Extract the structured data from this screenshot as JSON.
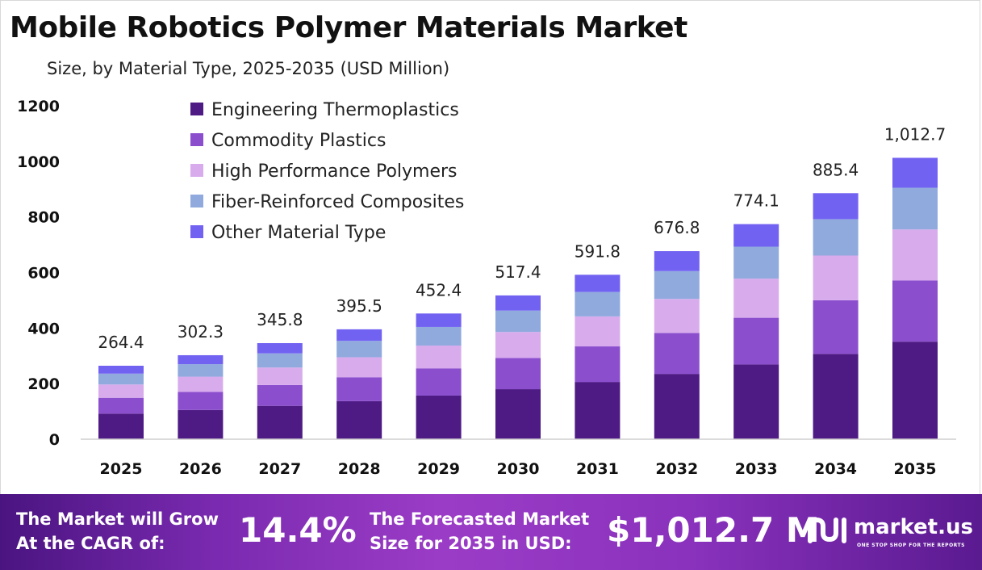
{
  "title": "Mobile Robotics Polymer Materials Market",
  "subtitle": "Size, by Material Type, 2025-2035 (USD Million)",
  "colors": {
    "engineering_thermoplastics": "#4e1a84",
    "commodity_plastics": "#8b4fce",
    "high_performance_polymers": "#d8acec",
    "fiber_reinforced_composites": "#90aade",
    "other_material_type": "#7262f2"
  },
  "chart_data": {
    "type": "bar",
    "stacked": true,
    "categories": [
      "2025",
      "2026",
      "2027",
      "2028",
      "2029",
      "2030",
      "2031",
      "2032",
      "2033",
      "2034",
      "2035"
    ],
    "totals": [
      264.4,
      302.3,
      345.8,
      395.5,
      452.4,
      517.4,
      591.8,
      676.8,
      774.1,
      885.4,
      1012.7
    ],
    "total_labels": [
      "264.4",
      "302.3",
      "345.8",
      "395.5",
      "452.4",
      "517.4",
      "591.8",
      "676.8",
      "774.1",
      "885.4",
      "1,012.7"
    ],
    "series": [
      {
        "name": "Engineering Thermoplastics",
        "color": "#4e1a84",
        "values": [
          92,
          105,
          120,
          137,
          157,
          180,
          206,
          235,
          269,
          307,
          351
        ]
      },
      {
        "name": "Commodity Plastics",
        "color": "#8b4fce",
        "values": [
          57,
          65,
          75,
          86,
          98,
          112,
          128,
          147,
          168,
          193,
          220
        ]
      },
      {
        "name": "High Performance Polymers",
        "color": "#d8acec",
        "values": [
          48,
          55,
          63,
          72,
          82,
          94,
          108,
          123,
          141,
          161,
          184
        ]
      },
      {
        "name": "Fiber-Reinforced Composites",
        "color": "#90aade",
        "values": [
          39,
          45,
          51,
          59,
          67,
          77,
          88,
          100,
          115,
          131,
          150
        ]
      },
      {
        "name": "Other Material Type",
        "color": "#7262f2",
        "values": [
          28.4,
          32.3,
          36.8,
          41.5,
          48.4,
          54.4,
          61.8,
          71.8,
          81.1,
          93.4,
          107.7
        ]
      }
    ],
    "ylim": [
      0,
      1200
    ],
    "yticks": [
      0,
      200,
      400,
      600,
      800,
      1000,
      1200
    ],
    "legend_position": "top-left",
    "grid": false
  },
  "footer": {
    "cagr_line1": "The Market will Grow",
    "cagr_line2": "At the CAGR of:",
    "cagr_value": "14.4%",
    "forecast_line1": "The Forecasted Market",
    "forecast_line2": "Size for 2035 in USD:",
    "forecast_value": "$1,012.7 M",
    "logo_name": "market.us",
    "logo_tagline": "ONE STOP SHOP FOR THE REPORTS"
  }
}
